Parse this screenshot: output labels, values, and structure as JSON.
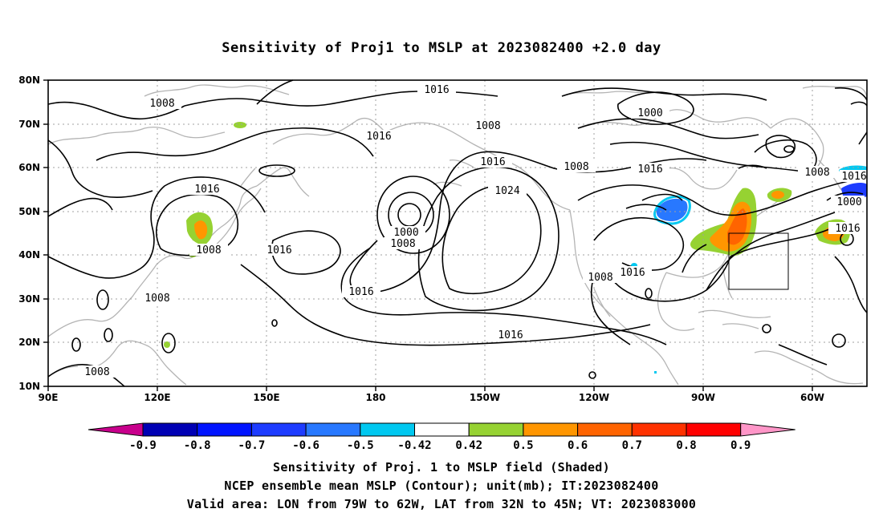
{
  "title": "Sensitivity of Proj1 to MSLP at 2023082400 +2.0 day",
  "axes": {
    "lat_labels": [
      "80N",
      "70N",
      "60N",
      "50N",
      "40N",
      "30N",
      "20N",
      "10N"
    ],
    "lon_labels": [
      "90E",
      "120E",
      "150E",
      "180",
      "150W",
      "120W",
      "90W",
      "60W"
    ]
  },
  "contour_labels": [
    "1016",
    "1008",
    "1016",
    "1008",
    "1000",
    "1016",
    "1016",
    "1024",
    "1008",
    "1016",
    "1008",
    "1000",
    "1000",
    "1008",
    "1016",
    "1016",
    "1008",
    "1008",
    "1016",
    "1008",
    "1016",
    "1008",
    "1016",
    "1016"
  ],
  "colorbar": {
    "labels": [
      "-0.9",
      "-0.8",
      "-0.7",
      "-0.6",
      "-0.5",
      "-0.42",
      "0.42",
      "0.5",
      "0.6",
      "0.7",
      "0.8",
      "0.9"
    ],
    "colors": [
      "#c8008c",
      "#0000b4",
      "#0014ff",
      "#1e3cff",
      "#2878ff",
      "#00c8f0",
      "#ffffff",
      "#96d232",
      "#ff9600",
      "#ff6400",
      "#ff3200",
      "#ff0000",
      "#ff96c8"
    ]
  },
  "map_colors": {
    "land": "#b4b4b4",
    "contour": "#000000",
    "grid": "#a0a0a0"
  },
  "footer": {
    "line1": "Sensitivity of Proj. 1 to MSLP field (Shaded)",
    "line2": "NCEP ensemble mean MSLP (Contour); unit(mb); IT:2023082400",
    "line3": "Valid area: LON from 79W to 62W, LAT from 32N to 45N; VT: 2023083000"
  }
}
